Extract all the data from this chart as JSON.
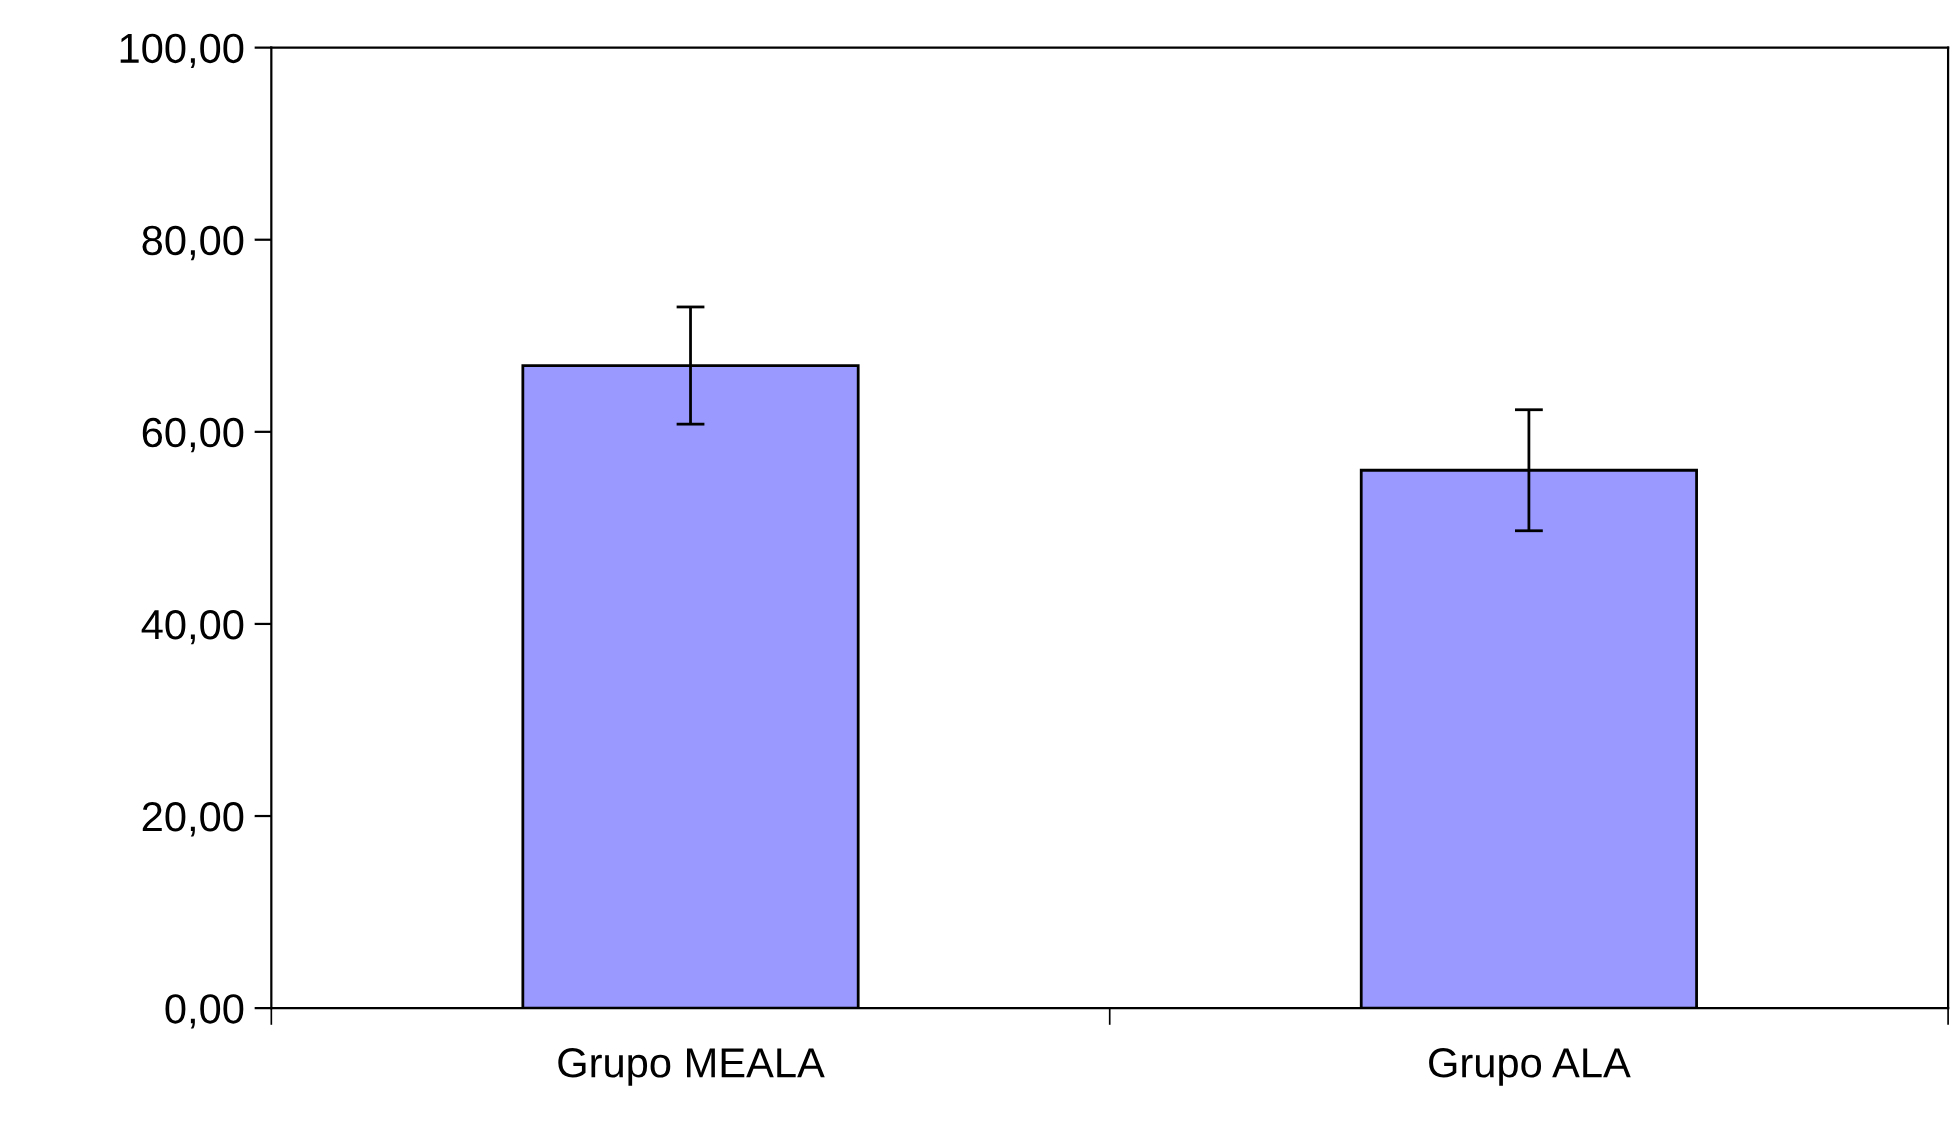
{
  "chart_data": {
    "type": "bar",
    "categories": [
      "Grupo MEALA",
      "Grupo ALA"
    ],
    "values": [
      66.9,
      56.0
    ],
    "errors": [
      6.1,
      6.3
    ],
    "color": "#9999ff",
    "ylim": [
      0,
      100
    ],
    "yticks": [
      {
        "value": 0,
        "label": "0,00"
      },
      {
        "value": 20,
        "label": "20,00"
      },
      {
        "value": 40,
        "label": "40,00"
      },
      {
        "value": 60,
        "label": "60,00"
      },
      {
        "value": 80,
        "label": "80,00"
      },
      {
        "value": 100,
        "label": "100,00"
      }
    ],
    "grid": false,
    "legend": false
  }
}
